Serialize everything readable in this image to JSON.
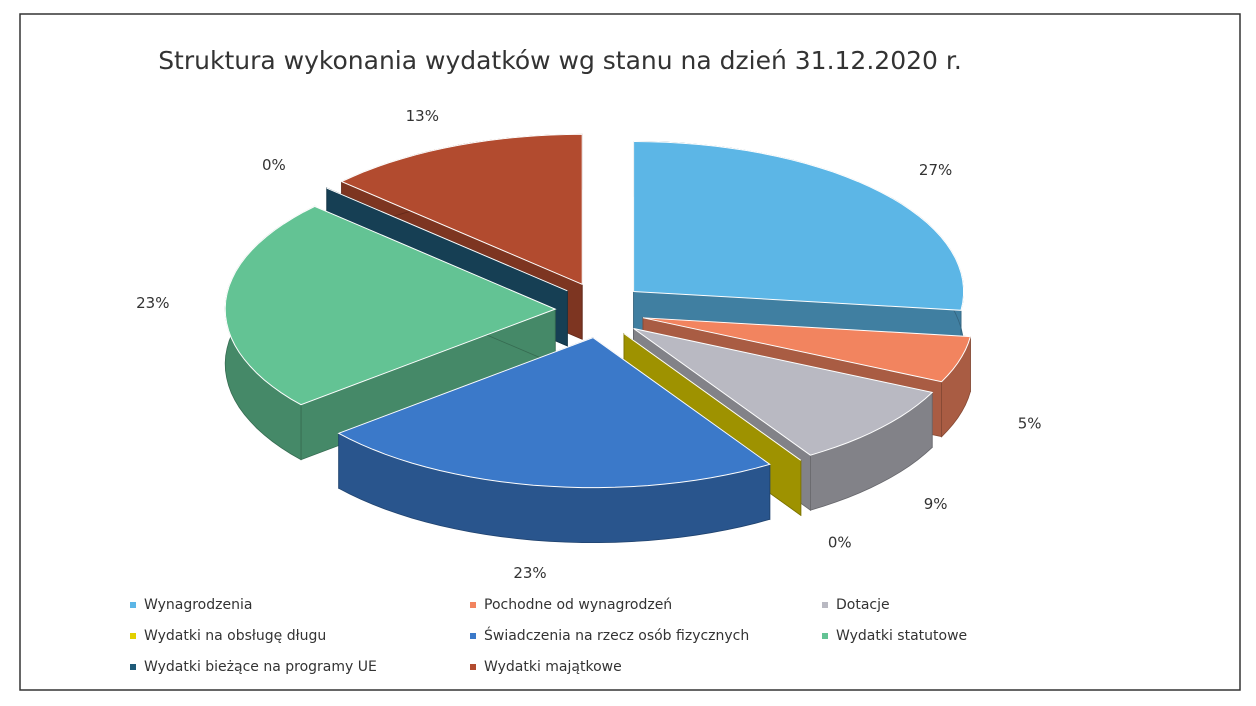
{
  "chart_data": {
    "type": "pie",
    "title": "Struktura wykonania wydatków wg stanu na dzień 31.12.2020 r.",
    "categories": [
      "Wynagrodzenia",
      "Pochodne od wynagrodzeń",
      "Dotacje",
      "Wydatki na obsługę długu",
      "Świadczenia na rzecz osób fizycznych",
      "Wydatki statutowe",
      "Wydatki bieżące na programy UE",
      "Wydatki majątkowe"
    ],
    "values": [
      27,
      5,
      9,
      0,
      23,
      23,
      0,
      13
    ],
    "value_labels": [
      "27%",
      "5%",
      "9%",
      "0%",
      "23%",
      "23%",
      "0%",
      "13%"
    ],
    "colors": [
      "#5cb6e6",
      "#f2845f",
      "#b9b9c2",
      "#e2d000",
      "#3b79c9",
      "#63c394",
      "#1f5a78",
      "#b24b2f"
    ],
    "legend": "bottom"
  }
}
